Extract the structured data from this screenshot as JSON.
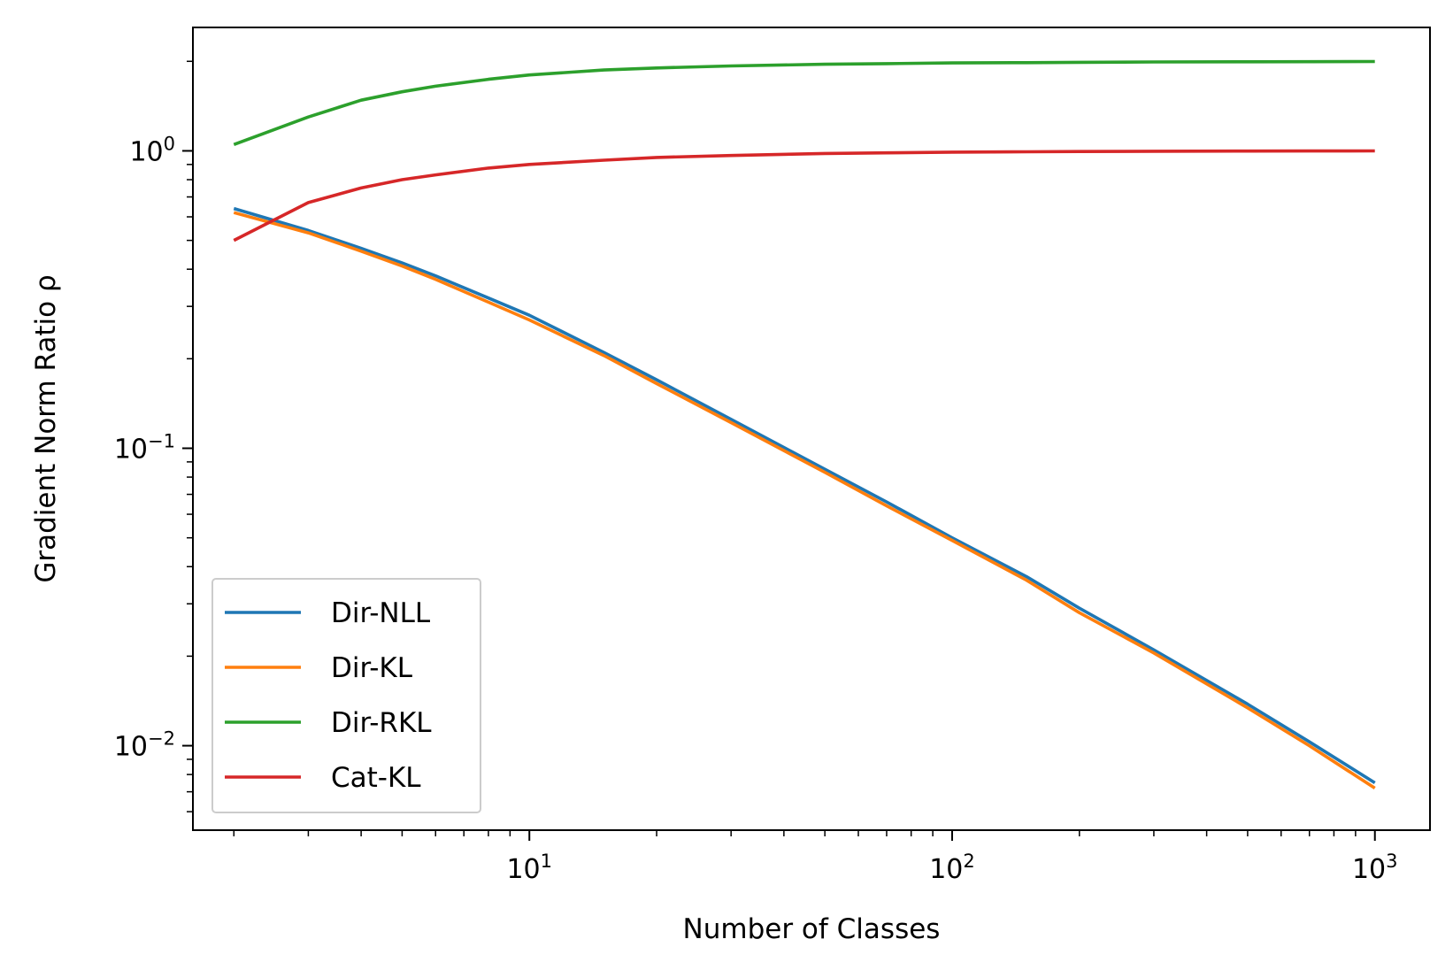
{
  "chart_data": {
    "type": "line",
    "title": "",
    "xlabel": "Number of Classes",
    "ylabel": "Gradient Norm Ratio ρ",
    "xscale": "log",
    "yscale": "log",
    "xlim": [
      1.6,
      1350
    ],
    "ylim": [
      0.0052,
      2.6
    ],
    "grid": false,
    "legend_position": "lower-left",
    "x_ticks": [
      {
        "value": 10,
        "base": "10",
        "exp": "1"
      },
      {
        "value": 100,
        "base": "10",
        "exp": "2"
      },
      {
        "value": 1000,
        "base": "10",
        "exp": "3"
      }
    ],
    "y_ticks": [
      {
        "value": 0.01,
        "base": "10",
        "exp": "−2"
      },
      {
        "value": 0.1,
        "base": "10",
        "exp": "−1"
      },
      {
        "value": 1,
        "base": "10",
        "exp": "0"
      }
    ],
    "x": [
      2,
      3,
      4,
      5,
      6,
      8,
      10,
      15,
      20,
      30,
      50,
      70,
      100,
      150,
      200,
      300,
      500,
      700,
      1000
    ],
    "series": [
      {
        "name": "Dir-NLL",
        "color": "#1f77b4",
        "values": [
          0.64,
          0.54,
          0.47,
          0.42,
          0.38,
          0.32,
          0.28,
          0.21,
          0.17,
          0.125,
          0.085,
          0.066,
          0.05,
          0.037,
          0.029,
          0.021,
          0.0138,
          0.0103,
          0.0075
        ]
      },
      {
        "name": "Dir-KL",
        "color": "#ff7f0e",
        "values": [
          0.62,
          0.53,
          0.46,
          0.41,
          0.37,
          0.31,
          0.27,
          0.205,
          0.165,
          0.122,
          0.083,
          0.064,
          0.049,
          0.036,
          0.028,
          0.0205,
          0.0134,
          0.01,
          0.0072
        ]
      },
      {
        "name": "Dir-RKL",
        "color": "#2ca02c",
        "values": [
          1.05,
          1.3,
          1.48,
          1.58,
          1.65,
          1.74,
          1.8,
          1.87,
          1.9,
          1.93,
          1.955,
          1.965,
          1.975,
          1.98,
          1.985,
          1.99,
          1.993,
          1.995,
          1.997
        ]
      },
      {
        "name": "Cat-KL",
        "color": "#d62728",
        "values": [
          0.5,
          0.67,
          0.75,
          0.8,
          0.83,
          0.875,
          0.9,
          0.93,
          0.95,
          0.965,
          0.98,
          0.985,
          0.99,
          0.993,
          0.995,
          0.997,
          0.998,
          0.999,
          1.0
        ]
      }
    ]
  }
}
